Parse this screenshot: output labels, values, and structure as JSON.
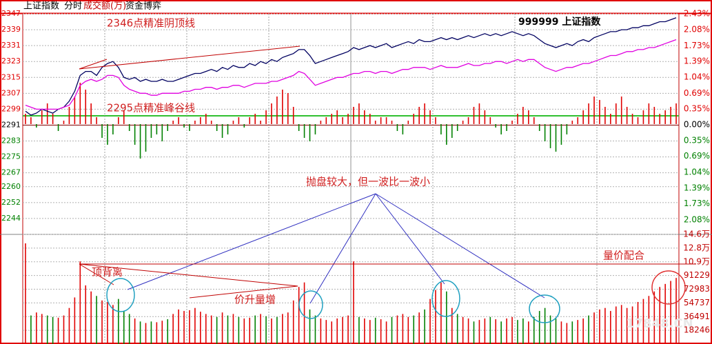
{
  "toolbar": {
    "items": [
      "上证指数",
      "分时",
      "成交额(万)",
      "资金博弈"
    ]
  },
  "watermark": "17848.CN",
  "chart_data": [
    {
      "type": "line",
      "title": "999999 上证指数",
      "ylim": [
        2236,
        2347
      ],
      "yticks": [
        2347,
        2339,
        2331,
        2323,
        2315,
        2307,
        2299,
        2291,
        2283,
        2275,
        2267,
        2260,
        2252,
        2244
      ],
      "y2lim": [
        -2.4,
        2.43
      ],
      "y2ticks": [
        {
          "value": 2.43,
          "label": "2.43%"
        },
        {
          "value": 2.08,
          "label": "2.08%"
        },
        {
          "value": 1.73,
          "label": "1.73%"
        },
        {
          "value": 1.39,
          "label": "1.39%"
        },
        {
          "value": 1.04,
          "label": "1.04%"
        },
        {
          "value": 0.69,
          "label": "0.69%"
        },
        {
          "value": 0.35,
          "label": "0.35%"
        },
        {
          "value": 0,
          "label": "0.00%"
        },
        {
          "value": -0.35,
          "label": "0.35%"
        },
        {
          "value": -0.69,
          "label": "0.69%"
        },
        {
          "value": -1.04,
          "label": "1.04%"
        },
        {
          "value": -1.39,
          "label": "1.39%"
        },
        {
          "value": -1.73,
          "label": "1.73%"
        },
        {
          "value": -2.08,
          "label": "2.08%"
        }
      ],
      "up_color": "#e00000",
      "down_color": "#008000",
      "series": [
        {
          "color": "#000060",
          "values": [
            2298,
            2296,
            2297,
            2299,
            2298,
            2297,
            2299,
            2300,
            2303,
            2308,
            2316,
            2318,
            2318,
            2316,
            2320,
            2322,
            2323,
            2320,
            2315,
            2314,
            2315,
            2313,
            2314,
            2313,
            2313,
            2314,
            2313,
            2313,
            2314,
            2315,
            2316,
            2317,
            2317,
            2318,
            2319,
            2318,
            2320,
            2319,
            2321,
            2320,
            2320,
            2322,
            2321,
            2323,
            2322,
            2324,
            2323,
            2325,
            2326,
            2327,
            2329,
            2329,
            2326,
            2322,
            2323,
            2324,
            2325,
            2326,
            2327,
            2328,
            2330,
            2329,
            2330,
            2331,
            2330,
            2331,
            2332,
            2330,
            2331,
            2332,
            2333,
            2332,
            2334,
            2333,
            2333,
            2334,
            2335,
            2334,
            2335,
            2334,
            2335,
            2336,
            2335,
            2336,
            2337,
            2336,
            2337,
            2336,
            2337,
            2338,
            2337,
            2336,
            2337,
            2336,
            2334,
            2332,
            2331,
            2330,
            2331,
            2332,
            2331,
            2333,
            2334,
            2333,
            2335,
            2336,
            2337,
            2338,
            2338,
            2339,
            2339,
            2340,
            2340,
            2341,
            2341,
            2342,
            2343,
            2343,
            2344,
            2345
          ]
        },
        {
          "color": "#e000e0",
          "values": [
            2301,
            2300,
            2299,
            2299,
            2299,
            2299,
            2299,
            2300,
            2301,
            2305,
            2311,
            2313,
            2314,
            2313,
            2314,
            2316,
            2316,
            2315,
            2311,
            2309,
            2308,
            2307,
            2307,
            2306,
            2306,
            2307,
            2307,
            2307,
            2307,
            2308,
            2308,
            2309,
            2309,
            2310,
            2310,
            2309,
            2310,
            2310,
            2311,
            2311,
            2310,
            2311,
            2312,
            2312,
            2312,
            2313,
            2313,
            2314,
            2315,
            2316,
            2318,
            2317,
            2314,
            2311,
            2312,
            2313,
            2314,
            2315,
            2315,
            2316,
            2317,
            2317,
            2318,
            2318,
            2317,
            2318,
            2318,
            2317,
            2318,
            2319,
            2319,
            2320,
            2320,
            2320,
            2319,
            2320,
            2321,
            2320,
            2320,
            2320,
            2321,
            2322,
            2321,
            2321,
            2322,
            2322,
            2323,
            2323,
            2322,
            2323,
            2324,
            2323,
            2324,
            2324,
            2322,
            2320,
            2319,
            2318,
            2319,
            2320,
            2320,
            2321,
            2322,
            2322,
            2323,
            2324,
            2325,
            2326,
            2326,
            2327,
            2328,
            2328,
            2329,
            2329,
            2330,
            2330,
            2331,
            2332,
            2333,
            2334
          ]
        }
      ],
      "annotations": [
        "2346点精准阴顶线",
        "2295点精准峰谷线",
        "抛盘较大，但一波比一波小",
        "顶背离",
        "价升量增",
        "量价配合"
      ]
    },
    {
      "type": "bar",
      "ylim": [
        -32,
        32
      ],
      "up_color": "#e00000",
      "down_color": "#008000",
      "values": [
        3,
        2,
        -1,
        4,
        6,
        3,
        -2,
        1,
        5,
        8,
        12,
        10,
        6,
        2,
        -4,
        -6,
        -3,
        2,
        4,
        -2,
        -6,
        -10,
        -8,
        -4,
        -3,
        -5,
        -2,
        1,
        2,
        -1,
        -2,
        1,
        2,
        3,
        1,
        -2,
        -4,
        -3,
        1,
        2,
        -1,
        2,
        3,
        1,
        4,
        6,
        8,
        10,
        9,
        5,
        -2,
        -4,
        -5,
        -3,
        1,
        2,
        3,
        4,
        2,
        3,
        5,
        6,
        4,
        3,
        1,
        2,
        2,
        1,
        -2,
        -3,
        1,
        3,
        5,
        6,
        4,
        2,
        -3,
        -6,
        -4,
        -2,
        1,
        2,
        5,
        6,
        4,
        2,
        -1,
        -3,
        -2,
        1,
        3,
        5,
        4,
        2,
        -2,
        -5,
        -7,
        -8,
        -6,
        -3,
        1,
        2,
        4,
        6,
        8,
        7,
        5,
        3,
        6,
        8,
        5,
        3,
        2,
        4,
        6,
        5,
        3,
        4,
        5,
        6
      ]
    },
    {
      "type": "bar",
      "ylim": [
        0,
        145967
      ],
      "up_color": "#e00000",
      "down_color": "#008000",
      "yticks": [
        {
          "value": 145967,
          "label": "14.6万"
        },
        {
          "value": 127721,
          "label": "12.8万"
        },
        {
          "value": 109475,
          "label": "10.9万"
        },
        91229,
        72983,
        54737,
        36491,
        18246
      ],
      "values": [
        134000,
        38000,
        42000,
        40000,
        38000,
        36000,
        35000,
        38000,
        48000,
        62000,
        110000,
        78000,
        70000,
        64000,
        58000,
        56000,
        52000,
        60000,
        44000,
        40000,
        34000,
        30000,
        28000,
        30000,
        29000,
        31000,
        33000,
        40000,
        46000,
        44000,
        45000,
        48000,
        43000,
        40000,
        38000,
        36000,
        42000,
        38000,
        40000,
        36000,
        34000,
        35000,
        38000,
        40000,
        37000,
        34000,
        36000,
        40000,
        42000,
        58000,
        76000,
        82000,
        46000,
        38000,
        34000,
        32000,
        30000,
        34000,
        36000,
        38000,
        110000,
        36000,
        34000,
        32000,
        35000,
        33000,
        30000,
        36000,
        38000,
        40000,
        36000,
        38000,
        42000,
        46000,
        60000,
        72000,
        82000,
        70000,
        48000,
        40000,
        36000,
        34000,
        30000,
        32000,
        34000,
        36000,
        33000,
        30000,
        34000,
        36000,
        32000,
        34000,
        30000,
        36000,
        44000,
        48000,
        38000,
        34000,
        30000,
        28000,
        30000,
        32000,
        34000,
        38000,
        42000,
        46000,
        48000,
        44000,
        50000,
        52000,
        48000,
        50000,
        56000,
        60000,
        64000,
        70000,
        76000,
        80000,
        84000,
        88000
      ]
    }
  ]
}
